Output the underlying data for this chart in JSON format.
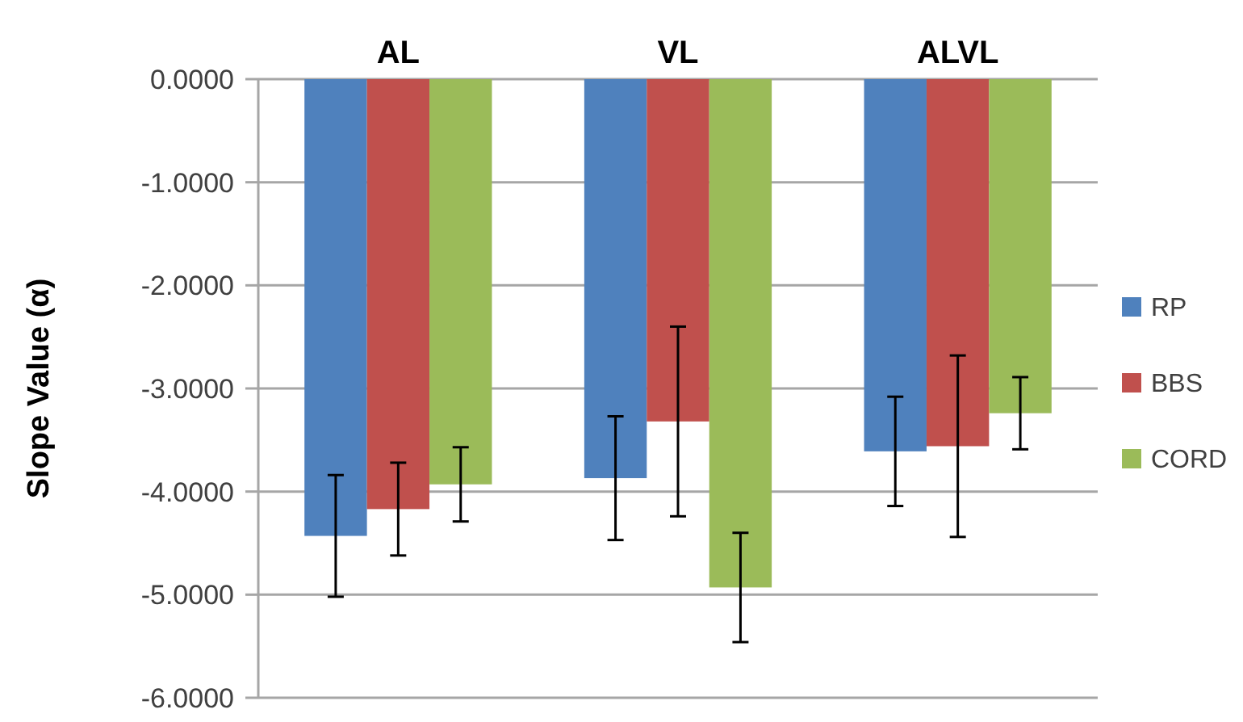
{
  "chart_data": {
    "type": "bar",
    "ylabel": "Slope Value (α)",
    "categories": [
      "AL",
      "VL",
      "ALVL"
    ],
    "series": [
      {
        "name": "RP",
        "color": "#4f81bd",
        "values": [
          -4.43,
          -3.87,
          -3.61
        ],
        "errors": [
          0.59,
          0.6,
          0.53
        ]
      },
      {
        "name": "BBS",
        "color": "#c0504d",
        "values": [
          -4.17,
          -3.32,
          -3.56
        ],
        "errors": [
          0.45,
          0.92,
          0.88
        ]
      },
      {
        "name": "CORD",
        "color": "#9bbb59",
        "values": [
          -3.93,
          -4.93,
          -3.24
        ],
        "errors": [
          0.36,
          0.53,
          0.35
        ]
      }
    ],
    "ylim": [
      -6,
      0
    ],
    "yticks": [
      {
        "value": 0,
        "label": "0.0000"
      },
      {
        "value": -1,
        "label": "-1.0000"
      },
      {
        "value": -2,
        "label": "-2.0000"
      },
      {
        "value": -3,
        "label": "-3.0000"
      },
      {
        "value": -4,
        "label": "-4.0000"
      },
      {
        "value": -5,
        "label": "-5.0000"
      },
      {
        "value": -6,
        "label": "-6.0000"
      }
    ],
    "grid": "y",
    "legend": "right"
  }
}
